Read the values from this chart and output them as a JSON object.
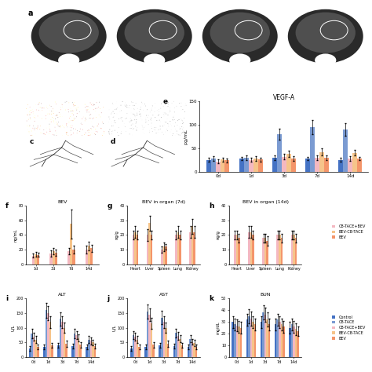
{
  "panel_e": {
    "title": "VEGF-A",
    "xlabel_vals": [
      "0d",
      "1d",
      "3d",
      "7d",
      "14d"
    ],
    "ylabel": "pg/mL",
    "ylim": [
      0,
      150
    ],
    "yticks": [
      0,
      50,
      100,
      150
    ],
    "groups": [
      "Control",
      "CB-TACE",
      "CB-TACE+BEV",
      "BEV-CB-TACE",
      "BEV"
    ],
    "colors": [
      "#4472C4",
      "#7B9BD2",
      "#F4B8C1",
      "#F6C48A",
      "#F4956A"
    ],
    "data": [
      [
        25,
        28,
        30,
        28,
        25
      ],
      [
        28,
        30,
        80,
        95,
        90
      ],
      [
        22,
        25,
        32,
        30,
        28
      ],
      [
        26,
        28,
        38,
        42,
        40
      ],
      [
        24,
        26,
        28,
        30,
        28
      ]
    ],
    "errors": [
      [
        4,
        4,
        5,
        4,
        4
      ],
      [
        5,
        5,
        12,
        15,
        14
      ],
      [
        4,
        4,
        6,
        5,
        5
      ],
      [
        4,
        5,
        7,
        7,
        6
      ],
      [
        4,
        4,
        5,
        5,
        4
      ]
    ]
  },
  "panel_f": {
    "title": "BEV",
    "xlabel_vals": [
      "1d",
      "3d",
      "7d",
      "14d"
    ],
    "ylabel": "ng/mL",
    "ylim": [
      0,
      80
    ],
    "yticks": [
      0,
      20,
      40,
      60,
      80
    ],
    "groups": [
      "CB-TACE+BEV",
      "BEV-CB-TACE",
      "BEV"
    ],
    "colors": [
      "#F4B8C1",
      "#F6C48A",
      "#F4956A"
    ],
    "data": [
      [
        12,
        15,
        18,
        20
      ],
      [
        14,
        18,
        55,
        25
      ],
      [
        13,
        16,
        20,
        22
      ]
    ],
    "errors": [
      [
        3,
        4,
        4,
        5
      ],
      [
        3,
        4,
        20,
        6
      ],
      [
        3,
        4,
        5,
        5
      ]
    ]
  },
  "panel_g": {
    "title": "BEV in organ (7d)",
    "xlabel_vals": [
      "Heart",
      "Liver",
      "Spleen",
      "Lung",
      "Kidney"
    ],
    "ylabel": "ng/g",
    "ylim": [
      0,
      40
    ],
    "yticks": [
      0,
      10,
      20,
      30,
      40
    ],
    "groups": [
      "CB-TACE+BEV",
      "BEV-CB-TACE",
      "BEV"
    ],
    "colors": [
      "#F4B8C1",
      "#F6C48A",
      "#F4956A"
    ],
    "data": [
      [
        20,
        20,
        10,
        20,
        22
      ],
      [
        22,
        28,
        12,
        22,
        26
      ],
      [
        20,
        20,
        12,
        20,
        22
      ]
    ],
    "errors": [
      [
        3,
        4,
        2,
        3,
        4
      ],
      [
        4,
        5,
        3,
        4,
        5
      ],
      [
        3,
        3,
        2,
        3,
        4
      ]
    ]
  },
  "panel_h": {
    "title": "BEV in organ (14d)",
    "xlabel_vals": [
      "Heart",
      "Liver",
      "Spleen",
      "Lung",
      "Kidney"
    ],
    "ylabel": "ng/g",
    "ylim": [
      0,
      40
    ],
    "yticks": [
      0,
      10,
      20,
      30,
      40
    ],
    "groups": [
      "CB-TACE+BEV",
      "BEV-CB-TACE",
      "BEV"
    ],
    "colors": [
      "#F4B8C1",
      "#F6C48A",
      "#F4956A"
    ],
    "data": [
      [
        20,
        22,
        18,
        20,
        20
      ],
      [
        20,
        22,
        18,
        20,
        20
      ],
      [
        18,
        20,
        16,
        18,
        18
      ]
    ],
    "errors": [
      [
        3,
        4,
        3,
        3,
        3
      ],
      [
        3,
        4,
        3,
        3,
        3
      ],
      [
        3,
        3,
        3,
        3,
        3
      ]
    ]
  },
  "panel_i": {
    "title": "ALT",
    "xlabel_vals": [
      "0d",
      "1d",
      "3d",
      "7d",
      "14d"
    ],
    "ylabel": "U/L",
    "ylim": [
      0,
      200
    ],
    "yticks": [
      0,
      50,
      100,
      150,
      200
    ],
    "groups": [
      "Control",
      "CB-TACE",
      "CB-TACE+BEV",
      "BEV-CB-TACE",
      "BEV"
    ],
    "colors": [
      "#4472C4",
      "#7B9BD2",
      "#F4B8C1",
      "#F6C48A",
      "#F4956A"
    ],
    "data": [
      [
        30,
        35,
        40,
        38,
        35
      ],
      [
        80,
        160,
        130,
        80,
        60
      ],
      [
        70,
        150,
        120,
        75,
        55
      ],
      [
        60,
        120,
        100,
        65,
        50
      ],
      [
        35,
        40,
        45,
        42,
        38
      ]
    ],
    "errors": [
      [
        8,
        8,
        9,
        8,
        8
      ],
      [
        15,
        25,
        22,
        15,
        12
      ],
      [
        13,
        23,
        20,
        14,
        11
      ],
      [
        12,
        20,
        18,
        12,
        10
      ],
      [
        8,
        9,
        10,
        9,
        8
      ]
    ]
  },
  "panel_j": {
    "title": "AST",
    "xlabel_vals": [
      "0d",
      "1d",
      "3d",
      "7d",
      "14d"
    ],
    "ylabel": "U/L",
    "ylim": [
      0,
      200
    ],
    "yticks": [
      0,
      50,
      100,
      150,
      200
    ],
    "groups": [
      "Control",
      "CB-TACE",
      "CB-TACE+BEV",
      "BEV-CB-TACE",
      "BEV"
    ],
    "colors": [
      "#4472C4",
      "#7B9BD2",
      "#F4B8C1",
      "#F6C48A",
      "#F4956A"
    ],
    "data": [
      [
        30,
        35,
        40,
        38,
        35
      ],
      [
        75,
        155,
        135,
        82,
        62
      ],
      [
        70,
        145,
        120,
        72,
        52
      ],
      [
        60,
        115,
        100,
        62,
        48
      ],
      [
        35,
        42,
        46,
        40,
        36
      ]
    ],
    "errors": [
      [
        8,
        8,
        9,
        8,
        8
      ],
      [
        14,
        24,
        22,
        15,
        12
      ],
      [
        13,
        22,
        20,
        13,
        10
      ],
      [
        12,
        19,
        18,
        12,
        10
      ],
      [
        8,
        9,
        10,
        9,
        8
      ]
    ]
  },
  "panel_k": {
    "title": "BUN",
    "xlabel_vals": [
      "0d",
      "1d",
      "3d",
      "7d",
      "14d"
    ],
    "ylabel": "mg/dL",
    "ylim": [
      0,
      50
    ],
    "yticks": [
      0,
      10,
      20,
      30,
      40,
      50
    ],
    "groups": [
      "Control",
      "CB-TACE",
      "CB-TACE+BEV",
      "BEV-CB-TACE",
      "BEV"
    ],
    "colors": [
      "#4472C4",
      "#7B9BD2",
      "#F4B8C1",
      "#F6C48A",
      "#F4956A"
    ],
    "data": [
      [
        30,
        32,
        30,
        28,
        25
      ],
      [
        28,
        35,
        38,
        32,
        28
      ],
      [
        27,
        33,
        36,
        30,
        26
      ],
      [
        26,
        30,
        32,
        28,
        24
      ],
      [
        25,
        28,
        28,
        26,
        22
      ]
    ],
    "errors": [
      [
        5,
        5,
        5,
        5,
        5
      ],
      [
        5,
        6,
        6,
        5,
        5
      ],
      [
        5,
        6,
        6,
        5,
        5
      ],
      [
        5,
        5,
        6,
        5,
        5
      ],
      [
        5,
        5,
        5,
        5,
        4
      ]
    ]
  },
  "legend_fgh": {
    "groups": [
      "CB-TACE+BEV",
      "BEV-CB-TACE",
      "BEV"
    ],
    "colors": [
      "#F4B8C1",
      "#F6C48A",
      "#F4956A"
    ]
  },
  "legend_ijk": {
    "groups": [
      "Control",
      "CB-TACE",
      "CB-TACE+BEV",
      "BEV-CB-TACE",
      "BEV"
    ],
    "colors": [
      "#4472C4",
      "#7B9BD2",
      "#F4B8C1",
      "#F6C48A",
      "#F4956A"
    ]
  },
  "bg_color": "#ffffff",
  "panel_bg": "#f0f0f0",
  "ct_bg": "#111111",
  "us_warm_bg": "#7a5010",
  "us_cold_bg": "#1a1a1a",
  "angio_bg": "#b8b8b8"
}
